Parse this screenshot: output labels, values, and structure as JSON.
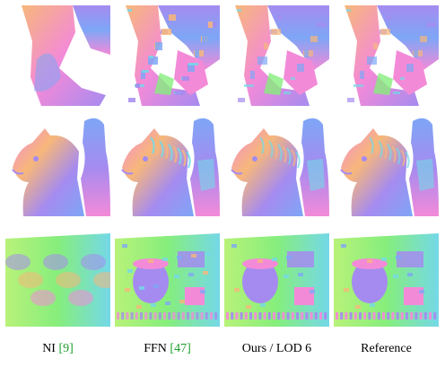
{
  "figure": {
    "columns": [
      {
        "label": "NI",
        "cite": "9",
        "style": "blobby"
      },
      {
        "label": "FFN",
        "cite": "47",
        "style": "noisy"
      },
      {
        "label": "Ours / LOD 6",
        "cite": "",
        "style": "sharp"
      },
      {
        "label": "Reference",
        "cite": "",
        "style": "sharp"
      }
    ],
    "rows": [
      "robot-legs",
      "horse-statue",
      "gear-machine"
    ],
    "colors": {
      "normal_pink": "#f38ad8",
      "normal_violet": "#a58bf0",
      "normal_blue": "#7ea6f6",
      "normal_cyan": "#74d8e8",
      "normal_green": "#86ee7c",
      "normal_lime": "#b8f27a",
      "normal_orange": "#f7b77a",
      "citation_green": "#1e9e2a"
    }
  }
}
